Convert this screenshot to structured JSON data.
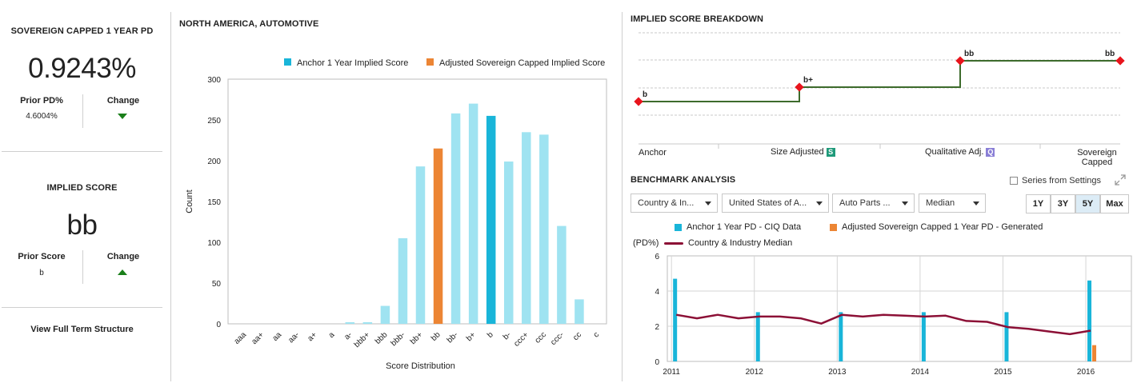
{
  "left": {
    "pd_title": "SOVEREIGN CAPPED 1 YEAR PD",
    "pd_value": "0.9243%",
    "prior_pd_label": "Prior PD%",
    "prior_pd_value": "4.6004%",
    "change_label": "Change",
    "implied_title": "IMPLIED SCORE",
    "implied_value": "bb",
    "prior_score_label": "Prior Score",
    "prior_score_value": "b",
    "change_label_2": "Change",
    "view_link": "View Full Term Structure"
  },
  "distribution": {
    "title": "NORTH AMERICA, AUTOMOTIVE",
    "legend": [
      {
        "label": "Anchor 1 Year Implied Score",
        "color": "#19b5d9"
      },
      {
        "label": "Adjusted Sovereign Capped Implied Score",
        "color": "#ec8534"
      }
    ]
  },
  "breakdown": {
    "title": "IMPLIED SCORE BREAKDOWN",
    "steps": [
      {
        "label": "Anchor",
        "score": "b",
        "badge": ""
      },
      {
        "label": "Size Adjusted",
        "score": "b+",
        "badge": "S",
        "badge_color": "#1f9a7a"
      },
      {
        "label": "Qualitative Adj.",
        "score": "bb",
        "badge": "Q",
        "badge_color": "#8a7fd6"
      },
      {
        "label": "Sovereign Capped",
        "score": "bb",
        "badge": ""
      }
    ],
    "end_label_line1": "Sovereign",
    "end_label_line2": "Capped"
  },
  "benchmark": {
    "title": "BENCHMARK ANALYSIS",
    "series_settings_label": "Series from Settings",
    "dropdowns": [
      {
        "value": "Country & In..."
      },
      {
        "value": "United States of A..."
      },
      {
        "value": "Auto Parts ..."
      },
      {
        "value": "Median"
      }
    ],
    "ranges": [
      {
        "label": "1Y",
        "active": false
      },
      {
        "label": "3Y",
        "active": false
      },
      {
        "label": "5Y",
        "active": true
      },
      {
        "label": "Max",
        "active": false
      }
    ],
    "legend": [
      {
        "label": "Anchor 1 Year PD - CIQ Data",
        "color": "#19b5d9",
        "kind": "box"
      },
      {
        "label": "Adjusted Sovereign Capped 1 Year PD - Generated",
        "color": "#ec8534",
        "kind": "box"
      },
      {
        "label": "Country & Industry Median",
        "color": "#8c1036",
        "kind": "line"
      }
    ],
    "unit_label": "(PD%)"
  },
  "chart_data": [
    {
      "type": "bar",
      "title": "NORTH AMERICA, AUTOMOTIVE",
      "xlabel": "Score Distribution",
      "ylabel": "Count",
      "ylim": [
        0,
        300
      ],
      "yticks": [
        0,
        50,
        100,
        150,
        200,
        250,
        300
      ],
      "categories": [
        "aaa",
        "aa+",
        "aa",
        "aa-",
        "a+",
        "a",
        "a-",
        "bbb+",
        "bbb",
        "bbb-",
        "bb+",
        "bb",
        "bb-",
        "b+",
        "b",
        "b-",
        "ccc+",
        "ccc",
        "ccc-",
        "cc",
        "c"
      ],
      "values": [
        0,
        0,
        0,
        0,
        0,
        0,
        2,
        2,
        22,
        105,
        193,
        215,
        258,
        270,
        255,
        199,
        235,
        232,
        120,
        30,
        0
      ],
      "highlight": {
        "bb": "#ec8534",
        "b": "#19b5d9"
      },
      "bar_color": "#9fe3f1",
      "grid": false
    },
    {
      "type": "line",
      "title": "IMPLIED SCORE BREAKDOWN",
      "categories": [
        "Anchor",
        "Size Adjusted",
        "Qualitative Adj.",
        "Sovereign Capped"
      ],
      "values": [
        "b",
        "b+",
        "bb",
        "bb"
      ],
      "line_color": "#3d6b2c",
      "marker_color": "#e8141c",
      "grid": true
    },
    {
      "type": "bar",
      "title": "BENCHMARK ANALYSIS",
      "ylabel": "(PD%)",
      "ylim": [
        0,
        6
      ],
      "yticks": [
        0,
        2,
        4,
        6
      ],
      "x_ticks": [
        "2011",
        "2012",
        "2013",
        "2014",
        "2015",
        "2016"
      ],
      "series": [
        {
          "name": "Anchor 1 Year PD - CIQ Data",
          "type": "bar",
          "color": "#19b5d9",
          "x": [
            2011,
            2012,
            2013,
            2014,
            2015,
            2016
          ],
          "values": [
            4.7,
            2.8,
            2.8,
            2.8,
            2.8,
            4.6
          ]
        },
        {
          "name": "Adjusted Sovereign Capped 1 Year PD - Generated",
          "type": "bar",
          "color": "#ec8534",
          "x": [
            2016
          ],
          "values": [
            0.9243
          ]
        },
        {
          "name": "Country & Industry Median",
          "type": "line",
          "color": "#8c1036",
          "x": [
            2011.0,
            2011.25,
            2011.5,
            2011.75,
            2012.0,
            2012.25,
            2012.5,
            2012.75,
            2013.0,
            2013.25,
            2013.5,
            2013.75,
            2014.0,
            2014.25,
            2014.5,
            2014.75,
            2015.0,
            2015.25,
            2015.5,
            2015.75,
            2016.0
          ],
          "values": [
            2.65,
            2.45,
            2.65,
            2.45,
            2.55,
            2.55,
            2.45,
            2.15,
            2.65,
            2.55,
            2.65,
            2.6,
            2.55,
            2.6,
            2.3,
            2.25,
            1.95,
            1.85,
            1.7,
            1.55,
            1.75
          ]
        }
      ],
      "grid": true
    }
  ]
}
